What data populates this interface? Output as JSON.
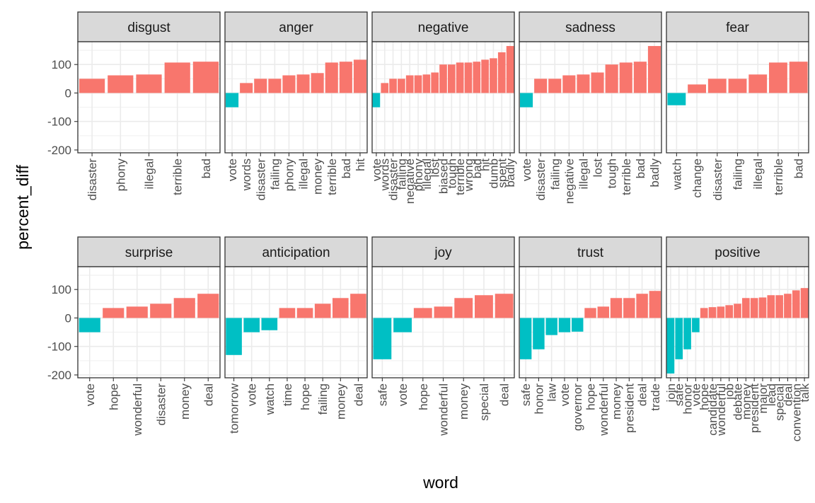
{
  "chart_data": {
    "type": "bar",
    "xlabel": "word",
    "ylabel": "percent_diff",
    "ylim": [
      -210,
      180
    ],
    "yticks": [
      100,
      0,
      -100,
      -200
    ],
    "grid": true,
    "legend": "none",
    "colors": {
      "positive": "#F8766D",
      "negative": "#00BFC4",
      "strip": "#D9D9D9",
      "panel_border": "#333333",
      "grid_major": "#EBEBEB"
    },
    "panels": [
      {
        "title": "disgust",
        "categories": [
          "disaster",
          "phony",
          "illegal",
          "terrible",
          "bad"
        ],
        "values": [
          50,
          62,
          65,
          107,
          110
        ]
      },
      {
        "title": "anger",
        "categories": [
          "vote",
          "words",
          "disaster",
          "failing",
          "phony",
          "illegal",
          "money",
          "terrible",
          "bad",
          "hit"
        ],
        "values": [
          -50,
          35,
          50,
          50,
          62,
          65,
          70,
          107,
          110,
          117
        ]
      },
      {
        "title": "negative",
        "categories": [
          "vote",
          "words",
          "disaster",
          "failing",
          "negative",
          "phony",
          "illegal",
          "lost",
          "biased",
          "tough",
          "terrible",
          "wrong",
          "bad",
          "hit",
          "dumb",
          "spent",
          "badly"
        ],
        "values": [
          -50,
          35,
          50,
          50,
          62,
          62,
          65,
          72,
          100,
          100,
          107,
          107,
          110,
          117,
          122,
          143,
          165
        ]
      },
      {
        "title": "sadness",
        "categories": [
          "vote",
          "disaster",
          "failing",
          "negative",
          "illegal",
          "lost",
          "tough",
          "terrible",
          "bad",
          "badly"
        ],
        "values": [
          -50,
          50,
          50,
          62,
          65,
          72,
          100,
          107,
          110,
          165
        ]
      },
      {
        "title": "fear",
        "categories": [
          "watch",
          "change",
          "disaster",
          "failing",
          "illegal",
          "terrible",
          "bad"
        ],
        "values": [
          -43,
          30,
          50,
          50,
          65,
          107,
          110
        ]
      },
      {
        "title": "surprise",
        "categories": [
          "vote",
          "hope",
          "wonderful",
          "disaster",
          "money",
          "deal"
        ],
        "values": [
          -50,
          35,
          40,
          50,
          70,
          85
        ]
      },
      {
        "title": "anticipation",
        "categories": [
          "tomorrow",
          "vote",
          "watch",
          "time",
          "hope",
          "failing",
          "money",
          "deal"
        ],
        "values": [
          -130,
          -50,
          -43,
          35,
          35,
          50,
          70,
          85
        ]
      },
      {
        "title": "joy",
        "categories": [
          "safe",
          "vote",
          "hope",
          "wonderful",
          "money",
          "special",
          "deal"
        ],
        "values": [
          -145,
          -50,
          35,
          40,
          70,
          80,
          85
        ]
      },
      {
        "title": "trust",
        "categories": [
          "safe",
          "honor",
          "law",
          "vote",
          "governor",
          "hope",
          "wonderful",
          "money",
          "president",
          "deal",
          "trade"
        ],
        "values": [
          -145,
          -110,
          -60,
          -50,
          -48,
          35,
          40,
          70,
          70,
          85,
          95
        ]
      },
      {
        "title": "positive",
        "categories": [
          "join",
          "safe",
          "honor",
          "vote",
          "hope",
          "candidate",
          "wonderful",
          "job",
          "debate",
          "money",
          "president",
          "major",
          "lead",
          "special",
          "deal",
          "convention",
          "talk"
        ],
        "values": [
          -195,
          -145,
          -110,
          -50,
          35,
          38,
          40,
          45,
          50,
          70,
          70,
          72,
          80,
          80,
          85,
          97,
          105
        ]
      }
    ]
  }
}
